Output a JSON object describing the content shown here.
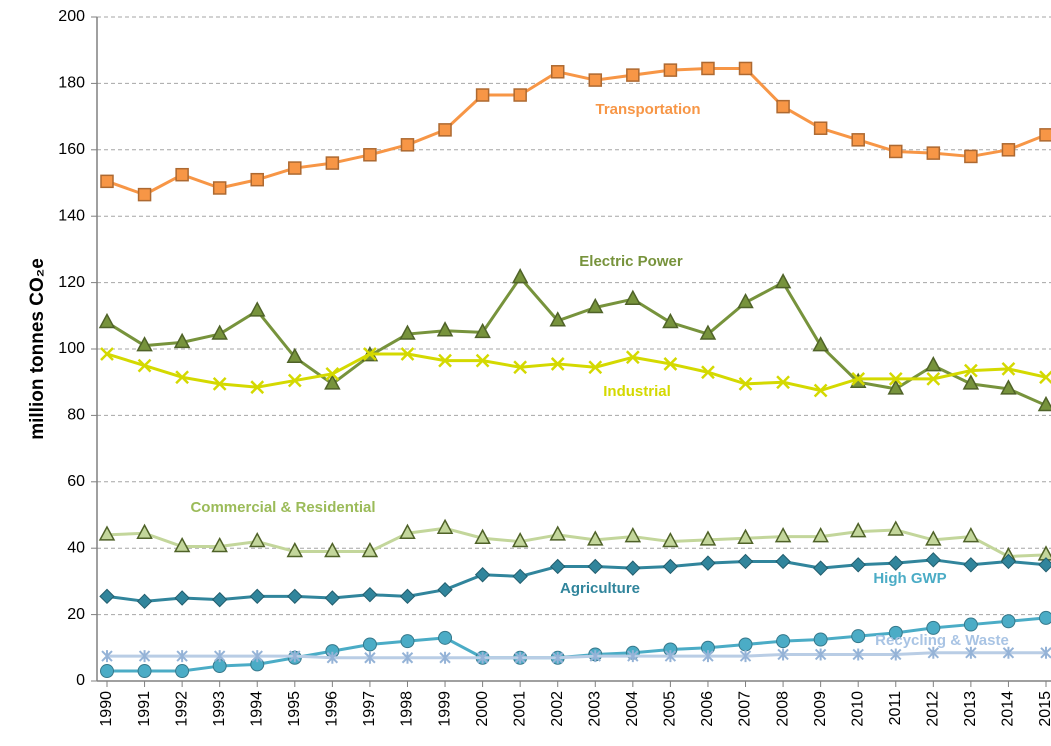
{
  "chart_data": {
    "type": "line",
    "y_label": "million tonnes CO₂e",
    "categories": [
      "1990",
      "1991",
      "1992",
      "1993",
      "1994",
      "1995",
      "1996",
      "1997",
      "1998",
      "1999",
      "2000",
      "2001",
      "2002",
      "2003",
      "2004",
      "2005",
      "2006",
      "2007",
      "2008",
      "2009",
      "2010",
      "2011",
      "2012",
      "2013",
      "2014",
      "2015"
    ],
    "ylim": [
      0,
      200
    ],
    "yticks": [
      0,
      20,
      40,
      60,
      80,
      100,
      120,
      140,
      160,
      180,
      200
    ],
    "grid": true,
    "series": [
      {
        "name": "Transportation",
        "color": "#f79646",
        "marker": "square",
        "values": [
          150.5,
          146.5,
          152.5,
          148.5,
          151,
          154.5,
          156,
          158.5,
          161.5,
          166,
          176.5,
          176.5,
          183.5,
          181,
          182.5,
          184,
          184.5,
          184.5,
          173,
          166.5,
          163,
          159.5,
          159,
          158,
          160,
          164.5
        ]
      },
      {
        "name": "Electric Power",
        "color": "#77933c",
        "marker": "triangle",
        "values": [
          108,
          101,
          102,
          104.5,
          111.5,
          97.5,
          89.5,
          98,
          104.5,
          105.5,
          105,
          121.5,
          108.5,
          112.5,
          115,
          108,
          104.5,
          114,
          120,
          101,
          90,
          88,
          95,
          89.5,
          88,
          83
        ]
      },
      {
        "name": "Industrial",
        "color": "#d4d900",
        "marker": "x",
        "values": [
          98.5,
          95,
          91.5,
          89.5,
          88.5,
          90.5,
          92.5,
          98.5,
          98.5,
          96.5,
          96.5,
          94.5,
          95.5,
          94.5,
          97.5,
          95.5,
          93,
          89.5,
          90,
          87.5,
          91,
          91,
          91,
          93.5,
          94,
          91.5
        ]
      },
      {
        "name": "Commercial & Residential",
        "color": "#c3d69b",
        "marker": "triangle",
        "values": [
          44,
          44.5,
          40.5,
          40.5,
          42,
          39,
          39,
          39,
          44.5,
          46,
          43,
          42,
          44,
          42.5,
          43.5,
          42,
          42.5,
          43,
          43.5,
          43.5,
          45,
          45.5,
          42.5,
          43.5,
          37.5,
          38
        ]
      },
      {
        "name": "Agriculture",
        "color": "#31859c",
        "marker": "diamond",
        "values": [
          25.5,
          24,
          25,
          24.5,
          25.5,
          25.5,
          25,
          26,
          25.5,
          27.5,
          32,
          31.5,
          34.5,
          34.5,
          34,
          34.5,
          35.5,
          36,
          36,
          34,
          35,
          35.5,
          36.5,
          35,
          36,
          35
        ]
      },
      {
        "name": "High GWP",
        "color": "#4bacc6",
        "marker": "circle",
        "values": [
          3,
          3,
          3,
          4.5,
          5,
          7,
          9,
          11,
          12,
          13,
          7,
          7,
          7,
          8,
          8.5,
          9.5,
          10,
          11,
          12,
          12.5,
          13.5,
          14.5,
          16,
          17,
          18,
          19
        ]
      },
      {
        "name": "Recycling & Waste",
        "color": "#b9cde5",
        "marker": "asterisk",
        "values": [
          7.5,
          7.5,
          7.5,
          7.5,
          7.5,
          7.5,
          7,
          7,
          7,
          7,
          7,
          7,
          7,
          7.5,
          7.5,
          7.5,
          7.5,
          7.5,
          8,
          8,
          8,
          8,
          8.5,
          8.5,
          8.5,
          8.5
        ]
      }
    ]
  }
}
